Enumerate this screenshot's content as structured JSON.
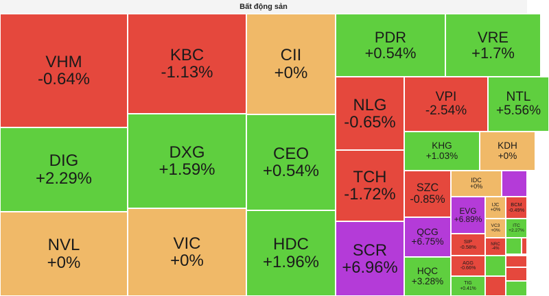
{
  "title": "Bất động sản",
  "tiles": [
    {
      "label": "VHM",
      "change": "-0.64%",
      "color": "#e5483d"
    },
    {
      "label": "DIG",
      "change": "+2.29%",
      "color": "#5fcf3f"
    },
    {
      "label": "NVL",
      "change": "+0%",
      "color": "#f0b968"
    },
    {
      "label": "KBC",
      "change": "-1.13%",
      "color": "#e5483d"
    },
    {
      "label": "DXG",
      "change": "+1.59%",
      "color": "#5fcf3f"
    },
    {
      "label": "VIC",
      "change": "+0%",
      "color": "#f0b968"
    },
    {
      "label": "CII",
      "change": "+0%",
      "color": "#f0b968"
    },
    {
      "label": "CEO",
      "change": "+0.54%",
      "color": "#5fcf3f"
    },
    {
      "label": "HDC",
      "change": "+1.96%",
      "color": "#5fcf3f"
    },
    {
      "label": "PDR",
      "change": "+0.54%",
      "color": "#5fcf3f"
    },
    {
      "label": "VRE",
      "change": "+1.7%",
      "color": "#5fcf3f"
    },
    {
      "label": "NLG",
      "change": "-0.65%",
      "color": "#e5483d"
    },
    {
      "label": "TCH",
      "change": "-1.72%",
      "color": "#e5483d"
    },
    {
      "label": "SCR",
      "change": "+6.96%",
      "color": "#b43bd8"
    },
    {
      "label": "VPI",
      "change": "-2.54%",
      "color": "#e5483d"
    },
    {
      "label": "NTL",
      "change": "+5.56%",
      "color": "#5fcf3f"
    },
    {
      "label": "KHG",
      "change": "+1.03%",
      "color": "#5fcf3f"
    },
    {
      "label": "KDH",
      "change": "+0%",
      "color": "#f0b968"
    },
    {
      "label": "SZC",
      "change": "-0.85%",
      "color": "#e5483d"
    },
    {
      "label": "QCG",
      "change": "+6.75%",
      "color": "#b43bd8"
    },
    {
      "label": "HQC",
      "change": "+3.28%",
      "color": "#5fcf3f"
    },
    {
      "label": "IDC",
      "change": "+0%",
      "color": "#f0b968"
    },
    {
      "label": "EVG",
      "change": "+6.89%",
      "color": "#b43bd8"
    },
    {
      "label": "IJC",
      "change": "+0%",
      "color": "#f0b968"
    },
    {
      "label": "BCM",
      "change": "-0.49%",
      "color": "#e5483d"
    },
    {
      "label": "VC3",
      "change": "+0%",
      "color": "#f0b968"
    },
    {
      "label": "ITC",
      "change": "+2.27%",
      "color": "#5fcf3f"
    },
    {
      "label": "SIP",
      "change": "-0.58%",
      "color": "#e5483d"
    },
    {
      "label": "AGG",
      "change": "-0.66%",
      "color": "#e5483d"
    },
    {
      "label": "TIG",
      "change": "+0.41%",
      "color": "#5fcf3f"
    },
    {
      "label": "NRC",
      "change": "-4%",
      "color": "#e5483d"
    }
  ]
}
